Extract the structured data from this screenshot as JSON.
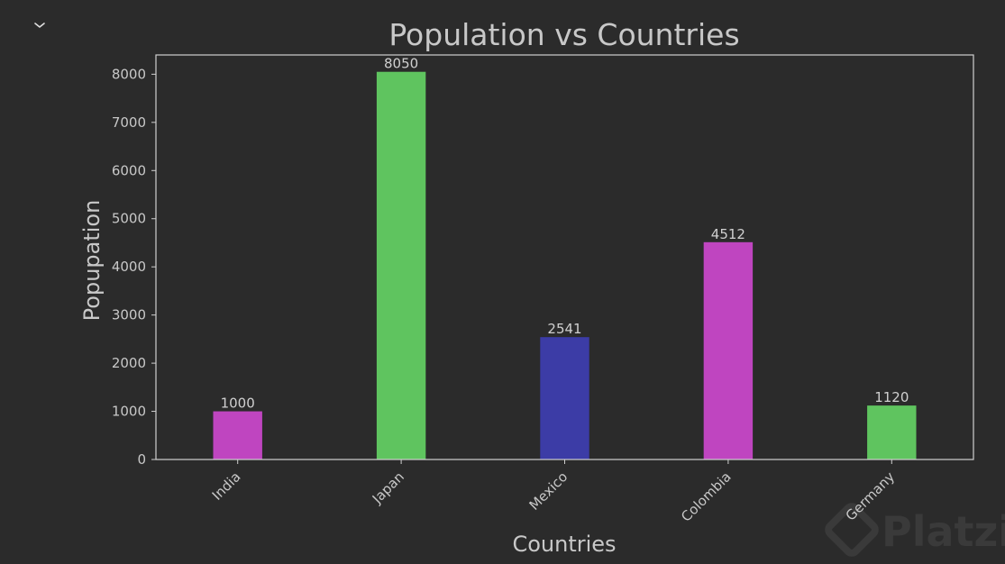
{
  "collapse_toggle": {
    "icon": "chevron-down-icon",
    "glyph": "⌄"
  },
  "watermark": {
    "text": "Platzi",
    "icon": "platzi-logo-icon"
  },
  "chart_data": {
    "type": "bar",
    "title": "Population vs Countries",
    "xlabel": "Countries",
    "ylabel": "Popupation",
    "categories": [
      "India",
      "Japan",
      "Mexico",
      "Colombia",
      "Germany"
    ],
    "values": [
      1000,
      8050,
      2541,
      4512,
      1120
    ],
    "bar_colors": [
      "#bf45c0",
      "#5fc45f",
      "#3c3ca6",
      "#bf45c0",
      "#5fc45f"
    ],
    "ylim": [
      0,
      8400
    ],
    "yticks": [
      0,
      1000,
      2000,
      3000,
      4000,
      5000,
      6000,
      7000,
      8000
    ],
    "grid": false,
    "data_labels": true,
    "background": "#2b2b2b",
    "text_color": "#c8c8c8"
  }
}
